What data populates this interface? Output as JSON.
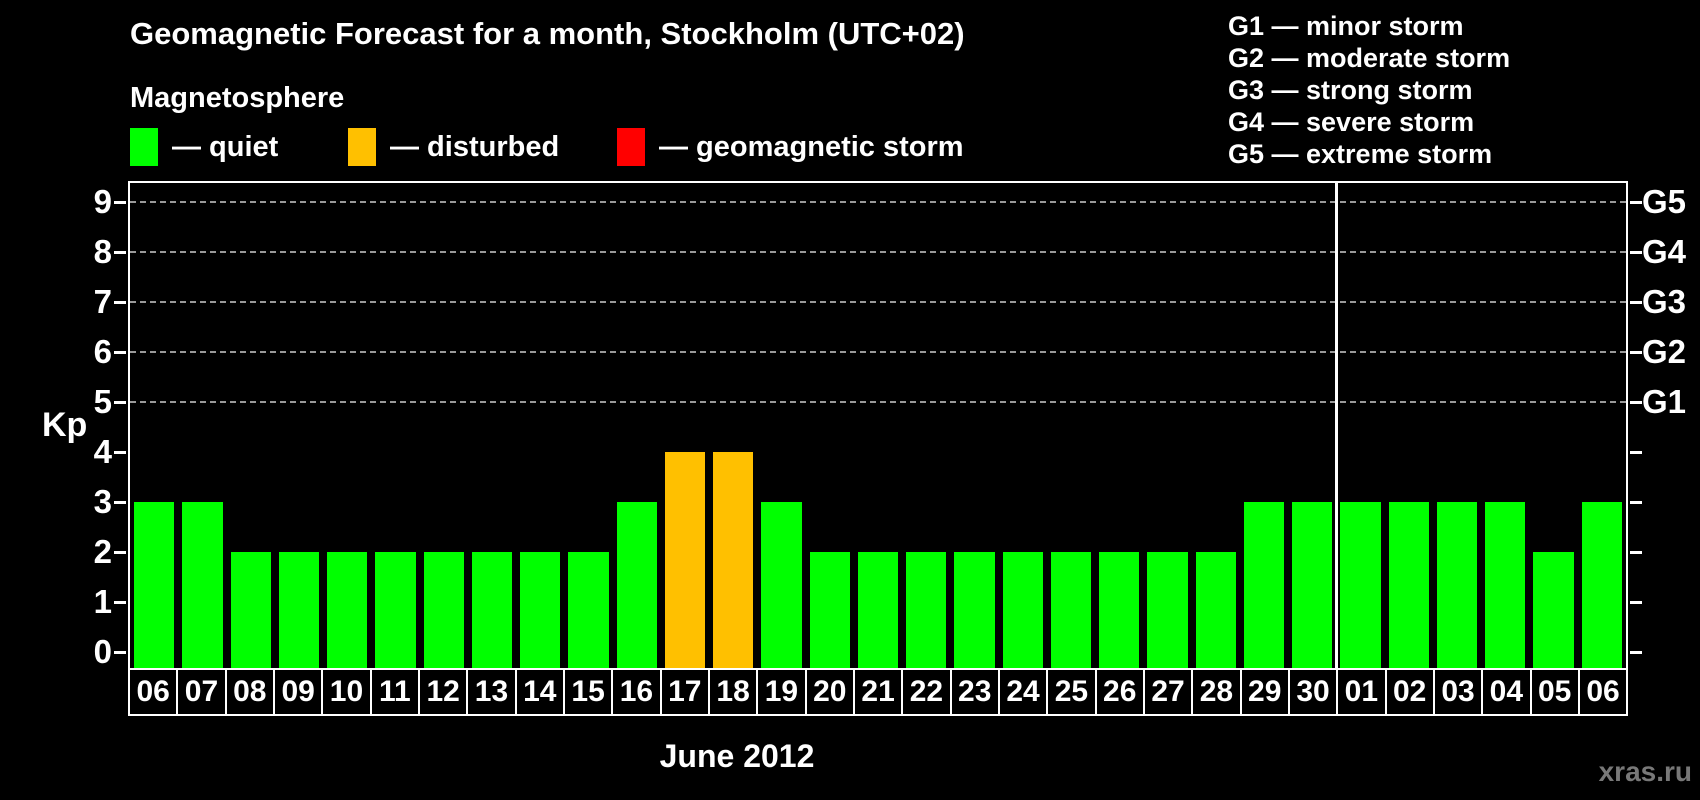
{
  "title": "Geomagnetic Forecast for a month, Stockholm (UTC+02)",
  "subtitle": "Magnetosphere",
  "legend": {
    "items": [
      {
        "name": "quiet",
        "label": "— quiet",
        "color": "#00ff00"
      },
      {
        "name": "disturbed",
        "label": "— disturbed",
        "color": "#ffc000"
      },
      {
        "name": "storm",
        "label": "— geomagnetic storm",
        "color": "#ff0000"
      }
    ]
  },
  "storm_scale": [
    "G1 — minor storm",
    "G2 — moderate storm",
    "G3 — strong storm",
    "G4 — severe storm",
    "G5 — extreme storm"
  ],
  "colors": {
    "quiet": "#00ff00",
    "disturbed": "#ffc000",
    "storm": "#ff0000",
    "grid": "#9a9a9a",
    "axis": "#ffffff",
    "watermark": "#787878",
    "background": "#000000"
  },
  "chart_data": {
    "type": "bar",
    "title": "Geomagnetic Forecast for a month, Stockholm (UTC+02)",
    "ylabel": "Kp",
    "xlabel": "June 2012",
    "ylim": [
      -0.36,
      9.4
    ],
    "yticks": [
      0,
      1,
      2,
      3,
      4,
      5,
      6,
      7,
      8,
      9
    ],
    "gridlines": [
      5,
      6,
      7,
      8,
      9
    ],
    "grid": "dashed horizontal at storm levels only",
    "legend_position": "top",
    "right_axis": [
      {
        "value": 5,
        "label": "G1"
      },
      {
        "value": 6,
        "label": "G2"
      },
      {
        "value": 7,
        "label": "G3"
      },
      {
        "value": 8,
        "label": "G4"
      },
      {
        "value": 9,
        "label": "G5"
      }
    ],
    "categories": [
      "06",
      "07",
      "08",
      "09",
      "10",
      "11",
      "12",
      "13",
      "14",
      "15",
      "16",
      "17",
      "18",
      "19",
      "20",
      "21",
      "22",
      "23",
      "24",
      "25",
      "26",
      "27",
      "28",
      "29",
      "30",
      "01",
      "02",
      "03",
      "04",
      "05",
      "06"
    ],
    "series": [
      {
        "name": "Kp forecast",
        "values": [
          3,
          3,
          2,
          2,
          2,
          2,
          2,
          2,
          2,
          2,
          3,
          4,
          4,
          3,
          2,
          2,
          2,
          2,
          2,
          2,
          2,
          2,
          2,
          3,
          3,
          3,
          3,
          3,
          3,
          2,
          3
        ]
      }
    ],
    "statuses": [
      "quiet",
      "quiet",
      "quiet",
      "quiet",
      "quiet",
      "quiet",
      "quiet",
      "quiet",
      "quiet",
      "quiet",
      "quiet",
      "disturbed",
      "disturbed",
      "quiet",
      "quiet",
      "quiet",
      "quiet",
      "quiet",
      "quiet",
      "quiet",
      "quiet",
      "quiet",
      "quiet",
      "quiet",
      "quiet",
      "quiet",
      "quiet",
      "quiet",
      "quiet",
      "quiet",
      "quiet"
    ],
    "month_separator_after_category_index": 24
  },
  "month_label": "June 2012",
  "watermark": "xras.ru"
}
